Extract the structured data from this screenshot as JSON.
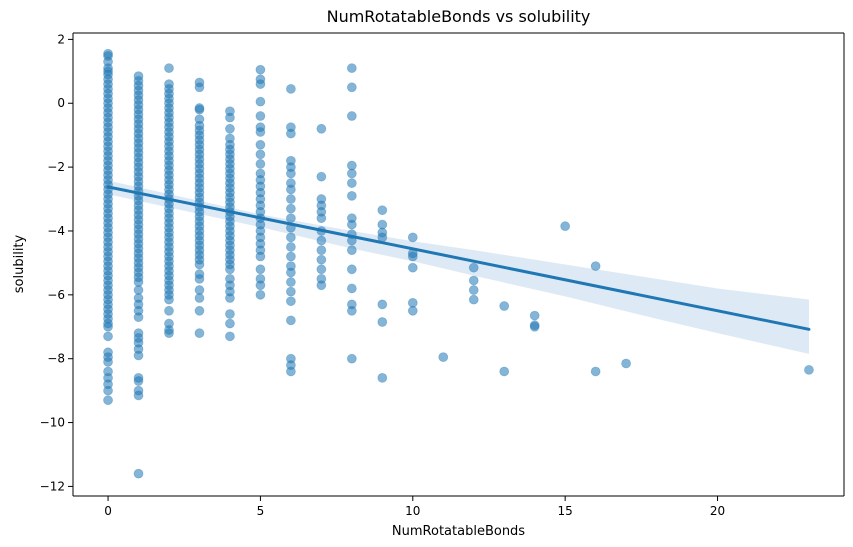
{
  "chart_data": {
    "type": "scatter",
    "title": "NumRotatableBonds vs solubility",
    "xlabel": "NumRotatableBonds",
    "ylabel": "solubility",
    "xlim": [
      -1.15,
      24.15
    ],
    "ylim": [
      -12.3,
      2.2
    ],
    "xticks": [
      0,
      5,
      10,
      15,
      20
    ],
    "yticks": [
      2,
      0,
      -2,
      -4,
      -6,
      -8,
      -10,
      -12
    ],
    "xtick_labels": [
      "0",
      "5",
      "10",
      "15",
      "20"
    ],
    "ytick_labels": [
      "2",
      "0",
      "−2",
      "−4",
      "−6",
      "−8",
      "−10",
      "−12"
    ],
    "grid": false,
    "legend": "none",
    "point_color": "#1f77b4",
    "line_color": "#1f77b4",
    "band_color": "#c6dbef",
    "regression": {
      "x": [
        0,
        23
      ],
      "y": [
        -2.62,
        -7.08
      ]
    },
    "confidence_band": {
      "x": [
        0,
        5,
        8,
        10,
        12,
        15,
        18,
        20,
        23
      ],
      "upper": [
        -2.42,
        -3.48,
        -4.0,
        -4.32,
        -4.6,
        -5.05,
        -5.5,
        -5.8,
        -6.15
      ],
      "lower": [
        -2.85,
        -3.88,
        -4.55,
        -4.95,
        -5.4,
        -6.05,
        -6.75,
        -7.2,
        -7.85
      ]
    },
    "points": [
      [
        0,
        1.55
      ],
      [
        0,
        1.48
      ],
      [
        0,
        1.3
      ],
      [
        0,
        1.1
      ],
      [
        0,
        1.0
      ],
      [
        0,
        0.9
      ],
      [
        0,
        0.75
      ],
      [
        0,
        0.6
      ],
      [
        0,
        0.45
      ],
      [
        0,
        0.3
      ],
      [
        0,
        0.15
      ],
      [
        0,
        0.0
      ],
      [
        0,
        -0.15
      ],
      [
        0,
        -0.3
      ],
      [
        0,
        -0.45
      ],
      [
        0,
        -0.6
      ],
      [
        0,
        -0.75
      ],
      [
        0,
        -0.9
      ],
      [
        0,
        -1.05
      ],
      [
        0,
        -1.2
      ],
      [
        0,
        -1.35
      ],
      [
        0,
        -1.5
      ],
      [
        0,
        -1.65
      ],
      [
        0,
        -1.8
      ],
      [
        0,
        -1.95
      ],
      [
        0,
        -2.1
      ],
      [
        0,
        -2.25
      ],
      [
        0,
        -2.4
      ],
      [
        0,
        -2.55
      ],
      [
        0,
        -2.7
      ],
      [
        0,
        -2.85
      ],
      [
        0,
        -3.0
      ],
      [
        0,
        -3.15
      ],
      [
        0,
        -3.3
      ],
      [
        0,
        -3.45
      ],
      [
        0,
        -3.6
      ],
      [
        0,
        -3.75
      ],
      [
        0,
        -3.9
      ],
      [
        0,
        -4.05
      ],
      [
        0,
        -4.2
      ],
      [
        0,
        -4.35
      ],
      [
        0,
        -4.5
      ],
      [
        0,
        -4.65
      ],
      [
        0,
        -4.8
      ],
      [
        0,
        -4.95
      ],
      [
        0,
        -5.1
      ],
      [
        0,
        -5.25
      ],
      [
        0,
        -5.4
      ],
      [
        0,
        -5.55
      ],
      [
        0,
        -5.7
      ],
      [
        0,
        -5.85
      ],
      [
        0,
        -6.0
      ],
      [
        0,
        -6.15
      ],
      [
        0,
        -6.3
      ],
      [
        0,
        -6.45
      ],
      [
        0,
        -6.6
      ],
      [
        0,
        -6.75
      ],
      [
        0,
        -6.9
      ],
      [
        0,
        -7.0
      ],
      [
        0,
        -7.3
      ],
      [
        0,
        -7.8
      ],
      [
        0,
        -7.95
      ],
      [
        0,
        -8.1
      ],
      [
        0,
        -8.4
      ],
      [
        0,
        -8.6
      ],
      [
        0,
        -8.8
      ],
      [
        0,
        -9.0
      ],
      [
        0,
        -9.3
      ],
      [
        1,
        0.85
      ],
      [
        1,
        0.7
      ],
      [
        1,
        0.55
      ],
      [
        1,
        0.4
      ],
      [
        1,
        0.25
      ],
      [
        1,
        0.1
      ],
      [
        1,
        -0.05
      ],
      [
        1,
        -0.2
      ],
      [
        1,
        -0.35
      ],
      [
        1,
        -0.5
      ],
      [
        1,
        -0.65
      ],
      [
        1,
        -0.8
      ],
      [
        1,
        -0.95
      ],
      [
        1,
        -1.1
      ],
      [
        1,
        -1.25
      ],
      [
        1,
        -1.4
      ],
      [
        1,
        -1.55
      ],
      [
        1,
        -1.7
      ],
      [
        1,
        -1.85
      ],
      [
        1,
        -2.0
      ],
      [
        1,
        -2.15
      ],
      [
        1,
        -2.3
      ],
      [
        1,
        -2.45
      ],
      [
        1,
        -2.6
      ],
      [
        1,
        -2.75
      ],
      [
        1,
        -2.9
      ],
      [
        1,
        -3.05
      ],
      [
        1,
        -3.2
      ],
      [
        1,
        -3.35
      ],
      [
        1,
        -3.5
      ],
      [
        1,
        -3.65
      ],
      [
        1,
        -3.8
      ],
      [
        1,
        -3.95
      ],
      [
        1,
        -4.1
      ],
      [
        1,
        -4.25
      ],
      [
        1,
        -4.4
      ],
      [
        1,
        -4.55
      ],
      [
        1,
        -4.7
      ],
      [
        1,
        -4.85
      ],
      [
        1,
        -5.0
      ],
      [
        1,
        -5.15
      ],
      [
        1,
        -5.3
      ],
      [
        1,
        -5.45
      ],
      [
        1,
        -5.6
      ],
      [
        1,
        -5.85
      ],
      [
        1,
        -6.1
      ],
      [
        1,
        -6.3
      ],
      [
        1,
        -6.5
      ],
      [
        1,
        -6.7
      ],
      [
        1,
        -7.2
      ],
      [
        1,
        -7.35
      ],
      [
        1,
        -7.5
      ],
      [
        1,
        -7.7
      ],
      [
        1,
        -7.9
      ],
      [
        1,
        -8.6
      ],
      [
        1,
        -8.7
      ],
      [
        1,
        -9.0
      ],
      [
        1,
        -9.15
      ],
      [
        1,
        -11.6
      ],
      [
        2,
        1.1
      ],
      [
        2,
        0.6
      ],
      [
        2,
        0.45
      ],
      [
        2,
        0.3
      ],
      [
        2,
        0.15
      ],
      [
        2,
        0.0
      ],
      [
        2,
        -0.15
      ],
      [
        2,
        -0.3
      ],
      [
        2,
        -0.45
      ],
      [
        2,
        -0.6
      ],
      [
        2,
        -0.75
      ],
      [
        2,
        -0.9
      ],
      [
        2,
        -1.05
      ],
      [
        2,
        -1.2
      ],
      [
        2,
        -1.35
      ],
      [
        2,
        -1.5
      ],
      [
        2,
        -1.65
      ],
      [
        2,
        -1.8
      ],
      [
        2,
        -1.95
      ],
      [
        2,
        -2.1
      ],
      [
        2,
        -2.25
      ],
      [
        2,
        -2.4
      ],
      [
        2,
        -2.55
      ],
      [
        2,
        -2.7
      ],
      [
        2,
        -2.85
      ],
      [
        2,
        -3.0
      ],
      [
        2,
        -3.15
      ],
      [
        2,
        -3.3
      ],
      [
        2,
        -3.45
      ],
      [
        2,
        -3.6
      ],
      [
        2,
        -3.75
      ],
      [
        2,
        -3.9
      ],
      [
        2,
        -4.05
      ],
      [
        2,
        -4.2
      ],
      [
        2,
        -4.35
      ],
      [
        2,
        -4.5
      ],
      [
        2,
        -4.65
      ],
      [
        2,
        -4.8
      ],
      [
        2,
        -4.95
      ],
      [
        2,
        -5.1
      ],
      [
        2,
        -5.25
      ],
      [
        2,
        -5.4
      ],
      [
        2,
        -5.55
      ],
      [
        2,
        -5.7
      ],
      [
        2,
        -5.85
      ],
      [
        2,
        -6.0
      ],
      [
        2,
        -6.15
      ],
      [
        2,
        -6.5
      ],
      [
        2,
        -6.9
      ],
      [
        2,
        -7.1
      ],
      [
        2,
        -7.2
      ],
      [
        3,
        0.65
      ],
      [
        3,
        0.5
      ],
      [
        3,
        -0.15
      ],
      [
        3,
        -0.2
      ],
      [
        3,
        -0.5
      ],
      [
        3,
        -0.7
      ],
      [
        3,
        -0.85
      ],
      [
        3,
        -1.0
      ],
      [
        3,
        -1.15
      ],
      [
        3,
        -1.3
      ],
      [
        3,
        -1.45
      ],
      [
        3,
        -1.6
      ],
      [
        3,
        -1.75
      ],
      [
        3,
        -1.9
      ],
      [
        3,
        -2.05
      ],
      [
        3,
        -2.2
      ],
      [
        3,
        -2.35
      ],
      [
        3,
        -2.5
      ],
      [
        3,
        -2.65
      ],
      [
        3,
        -2.8
      ],
      [
        3,
        -2.95
      ],
      [
        3,
        -3.1
      ],
      [
        3,
        -3.25
      ],
      [
        3,
        -3.4
      ],
      [
        3,
        -3.55
      ],
      [
        3,
        -3.7
      ],
      [
        3,
        -3.85
      ],
      [
        3,
        -4.0
      ],
      [
        3,
        -4.15
      ],
      [
        3,
        -4.3
      ],
      [
        3,
        -4.45
      ],
      [
        3,
        -4.6
      ],
      [
        3,
        -4.75
      ],
      [
        3,
        -4.9
      ],
      [
        3,
        -5.05
      ],
      [
        3,
        -5.35
      ],
      [
        3,
        -5.5
      ],
      [
        3,
        -5.85
      ],
      [
        3,
        -6.1
      ],
      [
        3,
        -6.5
      ],
      [
        3,
        -7.2
      ],
      [
        4,
        -0.25
      ],
      [
        4,
        -0.45
      ],
      [
        4,
        -0.8
      ],
      [
        4,
        -1.1
      ],
      [
        4,
        -1.3
      ],
      [
        4,
        -1.45
      ],
      [
        4,
        -1.6
      ],
      [
        4,
        -1.75
      ],
      [
        4,
        -1.9
      ],
      [
        4,
        -2.05
      ],
      [
        4,
        -2.2
      ],
      [
        4,
        -2.35
      ],
      [
        4,
        -2.5
      ],
      [
        4,
        -2.65
      ],
      [
        4,
        -2.8
      ],
      [
        4,
        -2.95
      ],
      [
        4,
        -3.1
      ],
      [
        4,
        -3.25
      ],
      [
        4,
        -3.4
      ],
      [
        4,
        -3.55
      ],
      [
        4,
        -3.7
      ],
      [
        4,
        -3.85
      ],
      [
        4,
        -4.0
      ],
      [
        4,
        -4.15
      ],
      [
        4,
        -4.3
      ],
      [
        4,
        -4.45
      ],
      [
        4,
        -4.6
      ],
      [
        4,
        -4.75
      ],
      [
        4,
        -4.9
      ],
      [
        4,
        -5.05
      ],
      [
        4,
        -5.2
      ],
      [
        4,
        -5.5
      ],
      [
        4,
        -5.7
      ],
      [
        4,
        -5.9
      ],
      [
        4,
        -6.1
      ],
      [
        4,
        -6.6
      ],
      [
        4,
        -6.9
      ],
      [
        4,
        -7.3
      ],
      [
        5,
        1.05
      ],
      [
        5,
        0.75
      ],
      [
        5,
        0.6
      ],
      [
        5,
        0.05
      ],
      [
        5,
        -0.4
      ],
      [
        5,
        -0.75
      ],
      [
        5,
        -0.9
      ],
      [
        5,
        -1.3
      ],
      [
        5,
        -1.6
      ],
      [
        5,
        -1.9
      ],
      [
        5,
        -2.2
      ],
      [
        5,
        -2.4
      ],
      [
        5,
        -2.6
      ],
      [
        5,
        -2.8
      ],
      [
        5,
        -3.0
      ],
      [
        5,
        -3.2
      ],
      [
        5,
        -3.4
      ],
      [
        5,
        -3.6
      ],
      [
        5,
        -3.8
      ],
      [
        5,
        -4.0
      ],
      [
        5,
        -4.2
      ],
      [
        5,
        -4.4
      ],
      [
        5,
        -4.6
      ],
      [
        5,
        -4.8
      ],
      [
        5,
        -5.2
      ],
      [
        5,
        -5.5
      ],
      [
        5,
        -5.7
      ],
      [
        5,
        -6.0
      ],
      [
        6,
        0.45
      ],
      [
        6,
        -0.75
      ],
      [
        6,
        -0.95
      ],
      [
        6,
        -1.8
      ],
      [
        6,
        -2.0
      ],
      [
        6,
        -2.2
      ],
      [
        6,
        -2.5
      ],
      [
        6,
        -2.7
      ],
      [
        6,
        -3.0
      ],
      [
        6,
        -3.3
      ],
      [
        6,
        -3.6
      ],
      [
        6,
        -3.9
      ],
      [
        6,
        -4.2
      ],
      [
        6,
        -4.5
      ],
      [
        6,
        -4.8
      ],
      [
        6,
        -5.1
      ],
      [
        6,
        -5.3
      ],
      [
        6,
        -5.6
      ],
      [
        6,
        -5.9
      ],
      [
        6,
        -6.2
      ],
      [
        6,
        -6.8
      ],
      [
        6,
        -8.0
      ],
      [
        6,
        -8.2
      ],
      [
        6,
        -8.4
      ],
      [
        7,
        -0.8
      ],
      [
        7,
        -2.3
      ],
      [
        7,
        -3.0
      ],
      [
        7,
        -3.2
      ],
      [
        7,
        -3.4
      ],
      [
        7,
        -3.6
      ],
      [
        7,
        -4.0
      ],
      [
        7,
        -4.3
      ],
      [
        7,
        -4.6
      ],
      [
        7,
        -4.9
      ],
      [
        7,
        -5.2
      ],
      [
        7,
        -5.5
      ],
      [
        7,
        -5.7
      ],
      [
        8,
        1.1
      ],
      [
        8,
        0.5
      ],
      [
        8,
        -0.4
      ],
      [
        8,
        -1.95
      ],
      [
        8,
        -2.2
      ],
      [
        8,
        -2.5
      ],
      [
        8,
        -2.9
      ],
      [
        8,
        -3.6
      ],
      [
        8,
        -3.8
      ],
      [
        8,
        -4.1
      ],
      [
        8,
        -4.3
      ],
      [
        8,
        -4.6
      ],
      [
        8,
        -5.2
      ],
      [
        8,
        -5.8
      ],
      [
        8,
        -6.3
      ],
      [
        8,
        -6.5
      ],
      [
        8,
        -8.0
      ],
      [
        9,
        -3.35
      ],
      [
        9,
        -3.8
      ],
      [
        9,
        -4.05
      ],
      [
        9,
        -4.2
      ],
      [
        9,
        -6.3
      ],
      [
        9,
        -6.85
      ],
      [
        9,
        -8.6
      ],
      [
        10,
        -4.2
      ],
      [
        10,
        -4.7
      ],
      [
        10,
        -4.8
      ],
      [
        10,
        -5.15
      ],
      [
        10,
        -6.25
      ],
      [
        10,
        -6.5
      ],
      [
        11,
        -7.95
      ],
      [
        12,
        -5.15
      ],
      [
        12,
        -5.55
      ],
      [
        12,
        -5.85
      ],
      [
        12,
        -6.15
      ],
      [
        13,
        -6.35
      ],
      [
        13,
        -8.4
      ],
      [
        14,
        -6.65
      ],
      [
        14,
        -6.95
      ],
      [
        14,
        -7.0
      ],
      [
        15,
        -3.85
      ],
      [
        16,
        -5.1
      ],
      [
        16,
        -8.4
      ],
      [
        17,
        -8.15
      ],
      [
        23,
        -8.35
      ]
    ]
  }
}
